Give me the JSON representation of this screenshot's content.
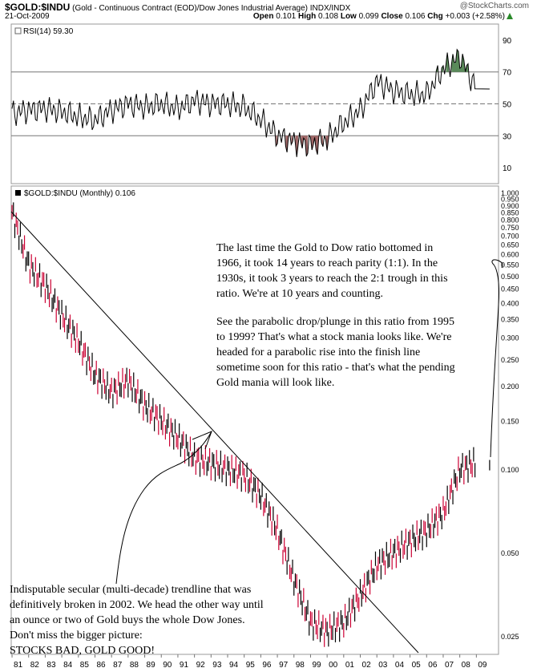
{
  "header": {
    "symbol": "$GOLD:$INDU",
    "description": "(Gold - Continuous Contract (EOD)/Dow Jones Industrial Average) INDX/INDX",
    "date": "21-Oct-2009",
    "logo": "@StockCharts.com",
    "open_label": "Open",
    "open": "0.101",
    "high_label": "High",
    "high": "0.108",
    "low_label": "Low",
    "low": "0.099",
    "close_label": "Close",
    "close": "0.106",
    "chg_label": "Chg",
    "chg": "+0.003 (+2.58%)",
    "chg_icon": "up-arrow-icon",
    "up_color": "#2a8a2a"
  },
  "rsi_panel": {
    "legend": "RSI(14) 59.30",
    "ticks": [
      "90",
      "70",
      "50",
      "30",
      "10"
    ]
  },
  "main_panel": {
    "legend": "$GOLD:$INDU (Monthly) 0.106",
    "ticks": [
      "1.000",
      "0.950",
      "0.900",
      "0.850",
      "0.800",
      "0.750",
      "0.700",
      "0.650",
      "0.600",
      "0.550",
      "0.500",
      "0.450",
      "0.400",
      "0.350",
      "0.300",
      "0.250",
      "0.200",
      "0.150",
      "0.100",
      "0.050",
      "0.025"
    ]
  },
  "x_ticks": [
    "81",
    "82",
    "83",
    "84",
    "85",
    "86",
    "87",
    "88",
    "89",
    "90",
    "91",
    "92",
    "93",
    "94",
    "95",
    "96",
    "97",
    "98",
    "99",
    "00",
    "01",
    "02",
    "03",
    "04",
    "05",
    "06",
    "07",
    "08",
    "09"
  ],
  "annotations": {
    "top_p1": "The last time the Gold to Dow ratio bottomed in 1966, it took 14 years to reach parity (1:1). In the 1930s, it took 3 years to reach the 2:1 trough in this ratio. We're at 10 years and counting.",
    "top_p2": "See the parabolic drop/plunge in this ratio from 1995 to 1999? That's what a stock mania looks like. We're headed for a parabolic rise into the finish line sometime soon for this ratio - that's what the pending Gold mania will look like.",
    "bottom_l1": "Indisputable secular (multi-decade) trendline that was",
    "bottom_l2": "definitively broken in 2002. We head the other way until",
    "bottom_l3": "an ounce or two of Gold buys the  whole Dow Jones.",
    "bottom_l4": "Don't miss the bigger picture:",
    "bottom_l5": "STOCKS BAD, GOLD GOOD!"
  },
  "chart_data": [
    {
      "type": "line",
      "title": "RSI(14) 59.30",
      "ylim": [
        0,
        100
      ],
      "y_ticks": [
        90,
        70,
        50,
        30,
        10
      ],
      "x": [
        1981,
        1982,
        1983,
        1984,
        1985,
        1986,
        1987,
        1988,
        1989,
        1990,
        1991,
        1992,
        1993,
        1994,
        1995,
        1996,
        1997,
        1998,
        1999,
        2000,
        2001,
        2002,
        2003,
        2004,
        2005,
        2006,
        2007,
        2008,
        2009
      ],
      "series": [
        {
          "values": [
            44,
            46,
            47,
            45,
            42,
            40,
            46,
            50,
            48,
            50,
            47,
            52,
            50,
            50,
            48,
            40,
            30,
            26,
            24,
            28,
            38,
            46,
            64,
            58,
            56,
            56,
            72,
            80,
            59.3
          ]
        }
      ],
      "colors": {
        "line": "#000000",
        "oversold_fill": "#a06868",
        "overbought_fill": "#5a8a5a"
      }
    },
    {
      "type": "bar",
      "title": "$GOLD:$INDU (Monthly) 0.106",
      "scale": "log",
      "ylim": [
        0.022,
        1.0
      ],
      "x": [
        1981,
        1982,
        1983,
        1984,
        1985,
        1986,
        1987,
        1988,
        1989,
        1990,
        1991,
        1992,
        1993,
        1994,
        1995,
        1996,
        1997,
        1998,
        1999,
        2000,
        2001,
        2002,
        2003,
        2004,
        2005,
        2006,
        2007,
        2008,
        2009
      ],
      "series": [
        {
          "values": [
            0.85,
            0.55,
            0.46,
            0.36,
            0.29,
            0.22,
            0.19,
            0.21,
            0.17,
            0.15,
            0.13,
            0.11,
            0.105,
            0.1,
            0.095,
            0.08,
            0.06,
            0.04,
            0.028,
            0.026,
            0.028,
            0.035,
            0.045,
            0.05,
            0.055,
            0.06,
            0.07,
            0.1,
            0.106
          ]
        }
      ],
      "colors": {
        "up": "#000000",
        "down": "#cc0033"
      }
    }
  ]
}
